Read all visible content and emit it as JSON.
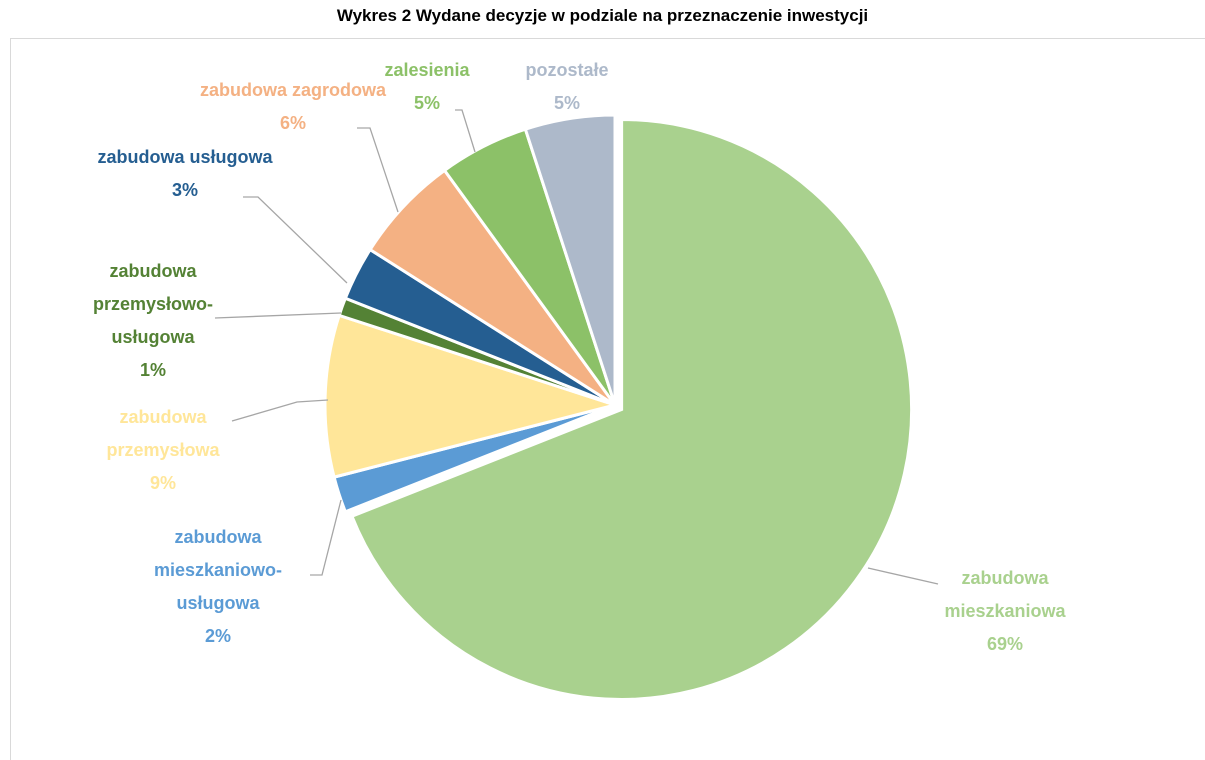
{
  "chart_data": {
    "type": "pie",
    "title": "Wykres 2 Wydane decyzje w podziale na przeznaczenie inwestycji",
    "categories": [
      "zabudowa mieszkaniowa",
      "zabudowa mieszkaniowo-usługowa",
      "zabudowa przemysłowa",
      "zabudowa przemysłowo-usługowa",
      "zabudowa usługowa",
      "zabudowa zagrodowa",
      "zalesienia",
      "pozostałe"
    ],
    "values": [
      69,
      2,
      9,
      1,
      3,
      6,
      5,
      5
    ],
    "value_labels": [
      "69%",
      "2%",
      "9%",
      "1%",
      "3%",
      "6%",
      "5%",
      "5%"
    ],
    "colors": [
      "#a9d18e",
      "#5b9bd5",
      "#ffe699",
      "#548235",
      "#255e91",
      "#f4b183",
      "#8cc168",
      "#adb9ca"
    ],
    "exploded": [
      0
    ]
  }
}
